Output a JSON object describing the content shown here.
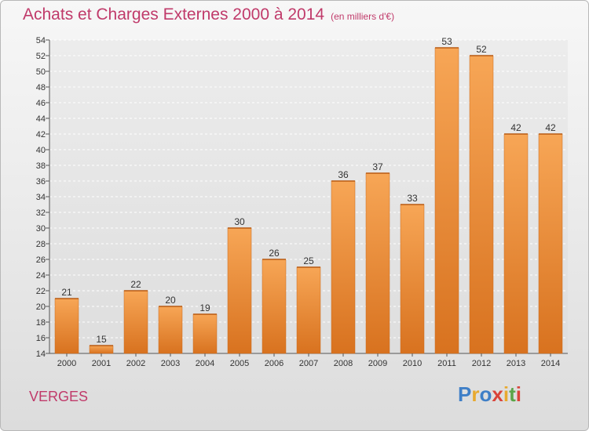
{
  "chart_data": {
    "type": "bar",
    "title": "Achats et Charges Externes 2000 à 2014",
    "subtitle": "(en milliers d'€)",
    "categories": [
      "2000",
      "2001",
      "2002",
      "2003",
      "2004",
      "2005",
      "2006",
      "2007",
      "2008",
      "2009",
      "2010",
      "2011",
      "2012",
      "2013",
      "2014"
    ],
    "values": [
      21,
      15,
      22,
      20,
      19,
      30,
      26,
      25,
      36,
      37,
      33,
      53,
      52,
      42,
      42
    ],
    "ylim": [
      14,
      54
    ],
    "yticks": [
      14,
      16,
      18,
      20,
      22,
      24,
      26,
      28,
      30,
      32,
      34,
      36,
      38,
      40,
      42,
      44,
      46,
      48,
      50,
      52,
      54
    ],
    "grid": true,
    "bar_color": "#f0933a"
  },
  "footer": {
    "location": "VERGES"
  },
  "logo": {
    "letters": [
      {
        "ch": "P",
        "color": "#3f7fc7"
      },
      {
        "ch": "r",
        "color": "#e8a92e"
      },
      {
        "ch": "o",
        "color": "#3f7fc7"
      },
      {
        "ch": "x",
        "color": "#d9433a"
      },
      {
        "ch": "i",
        "color": "#e8a92e"
      },
      {
        "ch": "t",
        "color": "#5aa548"
      },
      {
        "ch": "i",
        "color": "#d9433a"
      }
    ]
  }
}
